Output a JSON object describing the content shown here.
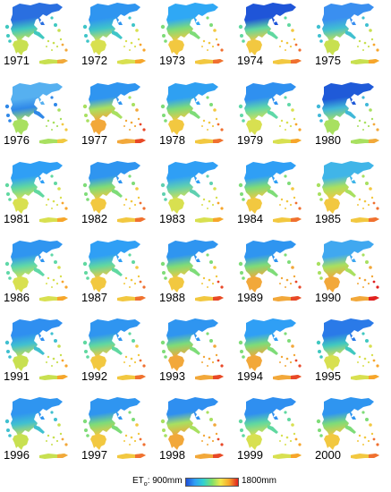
{
  "years": [
    "1971",
    "1972",
    "1973",
    "1974",
    "1975",
    "1976",
    "1977",
    "1978",
    "1979",
    "1980",
    "1981",
    "1982",
    "1983",
    "1984",
    "1985",
    "1986",
    "1987",
    "1988",
    "1989",
    "1990",
    "1991",
    "1992",
    "1993",
    "1994",
    "1995",
    "1996",
    "1997",
    "1998",
    "1999",
    "2000"
  ],
  "legend": {
    "prefix": "ET",
    "subscript": "o",
    "min_label": ": 900mm",
    "max_label": "1800mm",
    "colors": [
      "#1f4fd8",
      "#2f9ff5",
      "#30d0d0",
      "#7ee06a",
      "#f2e84a",
      "#f7a52b",
      "#e02020"
    ]
  },
  "map_colors": {
    "north": [
      "#2a6fe0",
      "#2f95f0",
      "#2fa8f5",
      "#1f55d8",
      "#3a8ff0",
      "#56b0f0",
      "#2f95f0",
      "#2fa0f2",
      "#2f90f0",
      "#1f5ad8",
      "#2f9ff5",
      "#2f95f0",
      "#2f9ff5",
      "#2f9ff5",
      "#40b5e8",
      "#2f95f0",
      "#2f9ff5",
      "#2f95f0",
      "#2f95f0",
      "#40a8f0",
      "#2f8ff0",
      "#2f95f0",
      "#2f95f0",
      "#2f9ff5",
      "#2a7ae8",
      "#2f95f0",
      "#2f95f0",
      "#2f8ff0",
      "#2f8ff0",
      "#2f95f0"
    ],
    "center": [
      "#40c8c0",
      "#3fc5c8",
      "#7edc78",
      "#60d8a0",
      "#40c0d0",
      "#2f88e8",
      "#a8e060",
      "#7edc78",
      "#5fd8a8",
      "#40b8d8",
      "#60d8a0",
      "#7edc78",
      "#5fd0b0",
      "#7edc78",
      "#a8e060",
      "#5fd8a8",
      "#60d8a0",
      "#7edc78",
      "#7edc78",
      "#a8e060",
      "#40c0d0",
      "#60d8a0",
      "#7edc78",
      "#7edc78",
      "#40c8c0",
      "#40c0d0",
      "#7edc78",
      "#a8e060",
      "#60d8a0",
      "#7edc78"
    ],
    "south": [
      "#c8e050",
      "#d8e050",
      "#f2c840",
      "#f2c840",
      "#c8e050",
      "#a8e060",
      "#f2a83a",
      "#f2c840",
      "#d8e050",
      "#a8e060",
      "#d8e050",
      "#f2c840",
      "#d8e050",
      "#f2c840",
      "#f2c840",
      "#d8e050",
      "#f2c840",
      "#f2c840",
      "#f2a83a",
      "#f2a83a",
      "#c8e050",
      "#f2c840",
      "#f2a83a",
      "#f2a83a",
      "#d8e050",
      "#c8e050",
      "#f2c840",
      "#f2a83a",
      "#d8e050",
      "#f2c840"
    ],
    "hot": [
      "#f2a83a",
      "#f7a52b",
      "#f07030",
      "#f07030",
      "#f7a52b",
      "#f2c840",
      "#e84828",
      "#f07030",
      "#f7a52b",
      "#f2a83a",
      "#f7a52b",
      "#f07030",
      "#f7a52b",
      "#f07030",
      "#f07030",
      "#f7a52b",
      "#f07030",
      "#e84828",
      "#e84828",
      "#e02020",
      "#f7a52b",
      "#f07030",
      "#e84828",
      "#e84828",
      "#f7a52b",
      "#f2a83a",
      "#f07030",
      "#e84828",
      "#f7a52b",
      "#f07030"
    ]
  }
}
